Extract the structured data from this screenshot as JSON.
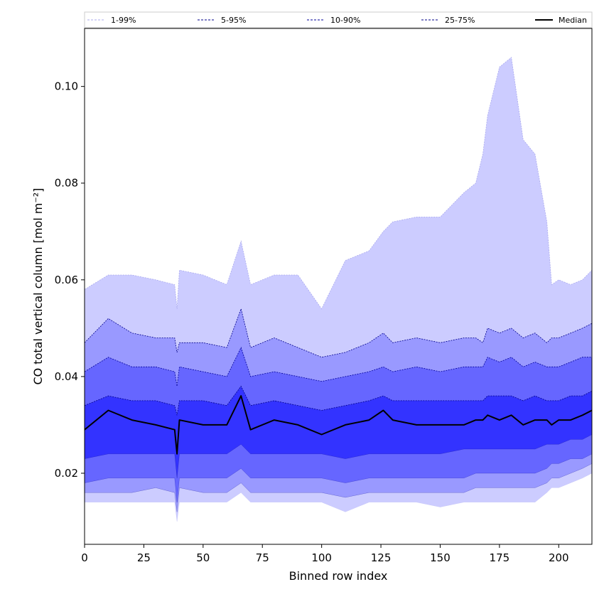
{
  "chart_data": {
    "type": "area",
    "xlabel": "Binned row index",
    "ylabel": "CO total vertical column [mol m⁻²]",
    "xlim": [
      0,
      214
    ],
    "ylim": [
      0.0053,
      0.112
    ],
    "xticks": [
      0,
      25,
      50,
      75,
      100,
      125,
      150,
      175,
      200
    ],
    "yticks": [
      0.02,
      0.04,
      0.06,
      0.08,
      0.1
    ],
    "ytick_labels": [
      "0.02",
      "0.04",
      "0.06",
      "0.08",
      "0.10"
    ],
    "legend_position": "top, above plot",
    "x": [
      0,
      10,
      20,
      30,
      38,
      39,
      40,
      50,
      60,
      66,
      70,
      80,
      90,
      100,
      110,
      120,
      126,
      130,
      140,
      150,
      160,
      165,
      168,
      170,
      175,
      180,
      185,
      190,
      195,
      197,
      200,
      205,
      210,
      214
    ],
    "bands": [
      {
        "name": "1-99%",
        "color": "#ccccff",
        "line_color": "#aaaaee",
        "upper": [
          0.058,
          0.061,
          0.061,
          0.06,
          0.059,
          0.054,
          0.062,
          0.061,
          0.059,
          0.068,
          0.059,
          0.061,
          0.061,
          0.054,
          0.064,
          0.066,
          0.07,
          0.072,
          0.073,
          0.073,
          0.078,
          0.08,
          0.086,
          0.094,
          0.104,
          0.106,
          0.089,
          0.086,
          0.072,
          0.059,
          0.06,
          0.059,
          0.06,
          0.062
        ],
        "lower": [
          0.014,
          0.014,
          0.014,
          0.014,
          0.014,
          0.01,
          0.014,
          0.014,
          0.014,
          0.016,
          0.014,
          0.014,
          0.014,
          0.014,
          0.012,
          0.014,
          0.014,
          0.014,
          0.014,
          0.013,
          0.014,
          0.014,
          0.014,
          0.014,
          0.014,
          0.014,
          0.014,
          0.014,
          0.016,
          0.017,
          0.017,
          0.018,
          0.019,
          0.02
        ]
      },
      {
        "name": "5-95%",
        "color": "#9999ff",
        "line_color": "#00008b",
        "upper": [
          0.047,
          0.052,
          0.049,
          0.048,
          0.048,
          0.045,
          0.047,
          0.047,
          0.046,
          0.054,
          0.046,
          0.048,
          0.046,
          0.044,
          0.045,
          0.047,
          0.049,
          0.047,
          0.048,
          0.047,
          0.048,
          0.048,
          0.047,
          0.05,
          0.049,
          0.05,
          0.048,
          0.049,
          0.047,
          0.048,
          0.048,
          0.049,
          0.05,
          0.051
        ],
        "lower": [
          0.016,
          0.016,
          0.016,
          0.017,
          0.016,
          0.012,
          0.017,
          0.016,
          0.016,
          0.018,
          0.016,
          0.016,
          0.016,
          0.016,
          0.015,
          0.016,
          0.016,
          0.016,
          0.016,
          0.016,
          0.016,
          0.017,
          0.017,
          0.017,
          0.017,
          0.017,
          0.017,
          0.017,
          0.018,
          0.019,
          0.019,
          0.02,
          0.021,
          0.022
        ]
      },
      {
        "name": "10-90%",
        "color": "#6666ff",
        "line_color": "#000099",
        "upper": [
          0.041,
          0.044,
          0.042,
          0.042,
          0.041,
          0.038,
          0.042,
          0.041,
          0.04,
          0.046,
          0.04,
          0.041,
          0.04,
          0.039,
          0.04,
          0.041,
          0.042,
          0.041,
          0.042,
          0.041,
          0.042,
          0.042,
          0.042,
          0.044,
          0.043,
          0.044,
          0.042,
          0.043,
          0.042,
          0.042,
          0.042,
          0.043,
          0.044,
          0.044
        ],
        "lower": [
          0.018,
          0.019,
          0.019,
          0.019,
          0.019,
          0.014,
          0.019,
          0.019,
          0.019,
          0.021,
          0.019,
          0.019,
          0.019,
          0.019,
          0.018,
          0.019,
          0.019,
          0.019,
          0.019,
          0.019,
          0.019,
          0.02,
          0.02,
          0.02,
          0.02,
          0.02,
          0.02,
          0.02,
          0.021,
          0.022,
          0.022,
          0.023,
          0.023,
          0.024
        ]
      },
      {
        "name": "25-75%",
        "color": "#3333ff",
        "line_color": "#000088",
        "upper": [
          0.034,
          0.036,
          0.035,
          0.035,
          0.034,
          0.032,
          0.035,
          0.035,
          0.034,
          0.038,
          0.034,
          0.035,
          0.034,
          0.033,
          0.034,
          0.035,
          0.036,
          0.035,
          0.035,
          0.035,
          0.035,
          0.035,
          0.035,
          0.036,
          0.036,
          0.036,
          0.035,
          0.036,
          0.035,
          0.035,
          0.035,
          0.036,
          0.036,
          0.037
        ],
        "lower": [
          0.023,
          0.024,
          0.024,
          0.024,
          0.024,
          0.019,
          0.024,
          0.024,
          0.024,
          0.026,
          0.024,
          0.024,
          0.024,
          0.024,
          0.023,
          0.024,
          0.024,
          0.024,
          0.024,
          0.024,
          0.025,
          0.025,
          0.025,
          0.025,
          0.025,
          0.025,
          0.025,
          0.025,
          0.026,
          0.026,
          0.026,
          0.027,
          0.027,
          0.028
        ]
      }
    ],
    "median": {
      "name": "Median",
      "color": "#000000",
      "values": [
        0.029,
        0.033,
        0.031,
        0.03,
        0.029,
        0.024,
        0.031,
        0.03,
        0.03,
        0.036,
        0.029,
        0.031,
        0.03,
        0.028,
        0.03,
        0.031,
        0.033,
        0.031,
        0.03,
        0.03,
        0.03,
        0.031,
        0.031,
        0.032,
        0.031,
        0.032,
        0.03,
        0.031,
        0.031,
        0.03,
        0.031,
        0.031,
        0.032,
        0.033
      ]
    },
    "legend": [
      "1-99%",
      "5-95%",
      "10-90%",
      "25-75%",
      "Median"
    ]
  }
}
